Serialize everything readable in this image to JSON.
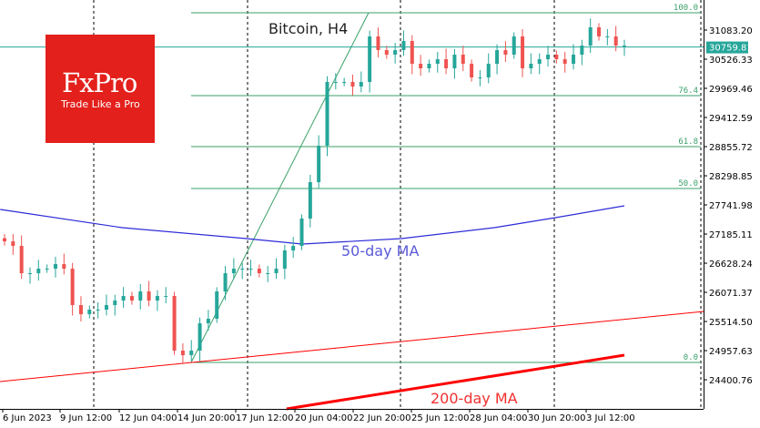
{
  "chart_data": {
    "type": "candlestick",
    "title": "Bitcoin, H4",
    "ylim": [
      23800,
      31700
    ],
    "y_ticks": [
      31083.2,
      30526.33,
      29969.46,
      29412.59,
      28855.72,
      28298.85,
      27741.98,
      27185.11,
      26628.24,
      26071.37,
      25514.5,
      24957.63,
      24400.76
    ],
    "x_ticks": [
      "6 Jun 2023",
      "9 Jun 12:00",
      "12 Jun 04:00",
      "14 Jun 20:00",
      "17 Jun 12:00",
      "20 Jun 04:00",
      "22 Jun 20:00",
      "25 Jun 12:00",
      "28 Jun 04:00",
      "30 Jun 20:00",
      "3 Jul 12:00"
    ],
    "current_price": "30759.81",
    "closes": [
      27046,
      26959,
      26437,
      26437,
      26524,
      26524,
      26611,
      26524,
      25828,
      25654,
      25741,
      25741,
      25828,
      25915,
      26002,
      25915,
      26089,
      25915,
      26002,
      26002,
      24958,
      24871,
      24958,
      25480,
      25567,
      26089,
      26437,
      26524,
      26524,
      26524,
      26437,
      26437,
      26524,
      26872,
      26959,
      27481,
      28177,
      28873,
      30091,
      30091,
      30091,
      30004,
      30091,
      30961,
      30700,
      30613,
      30700,
      30874,
      30439,
      30352,
      30439,
      30526,
      30352,
      30613,
      30439,
      30178,
      30178,
      30439,
      30700,
      30613,
      30961,
      30352,
      30439,
      30526,
      30613,
      30526,
      30439,
      30613,
      30787,
      31135,
      30961,
      30961,
      30787,
      30787
    ],
    "ma50": {
      "label": "50-day MA",
      "color": "#2b2bd8",
      "points": [
        [
          0,
          27655
        ],
        [
          0.19,
          27307
        ],
        [
          0.39,
          27099
        ],
        [
          0.48,
          26994
        ],
        [
          0.64,
          27099
        ],
        [
          0.79,
          27307
        ],
        [
          0.88,
          27481
        ],
        [
          1,
          27725
        ]
      ]
    },
    "ma200": {
      "label": "200-day MA",
      "color": "#ff0000",
      "points": [
        [
          0.455,
          23845
        ],
        [
          1,
          24871
        ]
      ]
    },
    "trendline": {
      "color": "#ff0000",
      "from": 24367,
      "to": 25706
    },
    "fib": {
      "color": "#3aa06a",
      "levels": [
        {
          "label": "100.0",
          "price": 31414
        },
        {
          "label": "76.4",
          "price": 29830
        },
        {
          "label": "61.8",
          "price": 28856
        },
        {
          "label": "50.0",
          "price": 28055
        },
        {
          "label": "0.0",
          "price": 24732
        }
      ]
    },
    "colors": {
      "up": "#26a69a",
      "down": "#ef5350",
      "price_line": "#26a69a"
    }
  },
  "logo": {
    "brand": "FxPro",
    "tagline": "Trade Like a Pro"
  }
}
